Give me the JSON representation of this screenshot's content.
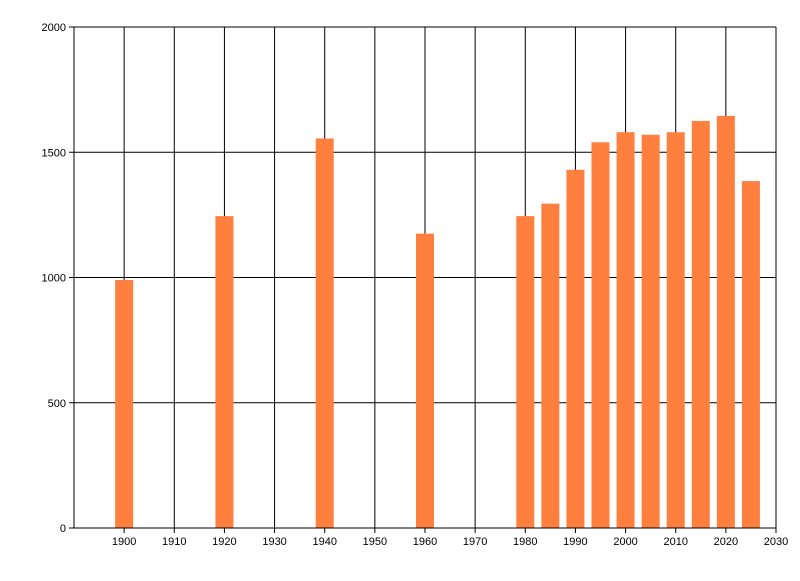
{
  "chart_data": {
    "type": "bar",
    "title": "",
    "xlabel": "",
    "ylabel": "",
    "xlim": [
      1890,
      2030
    ],
    "ylim": [
      0,
      2000
    ],
    "x_ticks": [
      1900,
      1910,
      1920,
      1930,
      1940,
      1950,
      1960,
      1970,
      1980,
      1990,
      2000,
      2010,
      2020,
      2030
    ],
    "y_ticks": [
      0,
      500,
      1000,
      1500,
      2000
    ],
    "grid": true,
    "legend": "none",
    "bar_color": "#ff7f3f",
    "series": [
      {
        "values": [
          {
            "x": 1900,
            "y": 990
          },
          {
            "x": 1920,
            "y": 1245
          },
          {
            "x": 1940,
            "y": 1555
          },
          {
            "x": 1960,
            "y": 1175
          },
          {
            "x": 1980,
            "y": 1245
          },
          {
            "x": 1985,
            "y": 1295
          },
          {
            "x": 1990,
            "y": 1430
          },
          {
            "x": 1995,
            "y": 1540
          },
          {
            "x": 2000,
            "y": 1580
          },
          {
            "x": 2005,
            "y": 1570
          },
          {
            "x": 2010,
            "y": 1580
          },
          {
            "x": 2015,
            "y": 1625
          },
          {
            "x": 2020,
            "y": 1645
          },
          {
            "x": 2025,
            "y": 1385
          }
        ]
      }
    ]
  }
}
